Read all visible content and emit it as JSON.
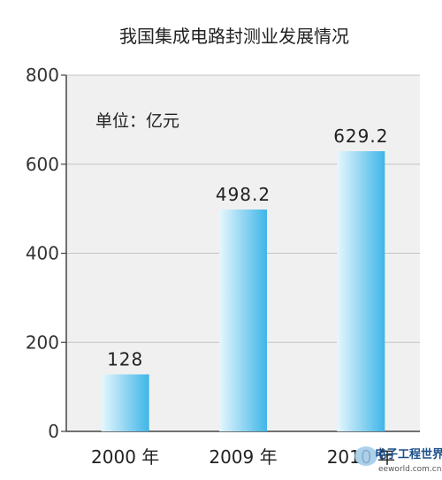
{
  "chart_data": {
    "type": "bar",
    "title": "我国集成电路封测业发展情况",
    "unit_label": "单位：亿元",
    "categories": [
      "2000 年",
      "2009 年",
      "2010 年"
    ],
    "values": [
      128,
      498.2,
      629.2
    ],
    "value_labels": [
      "128",
      "498.2",
      "629.2"
    ],
    "ylim": [
      0,
      800
    ],
    "yticks": [
      "0",
      "200",
      "400",
      "600",
      "800"
    ],
    "grid": true,
    "bar_color_light": "#e6f7fd",
    "bar_color_dark": "#3fb5e8",
    "plot_background": "#f0f0f0"
  },
  "watermark": {
    "logo_text": "电子工程世界",
    "site": "eeworld.com.cn"
  }
}
